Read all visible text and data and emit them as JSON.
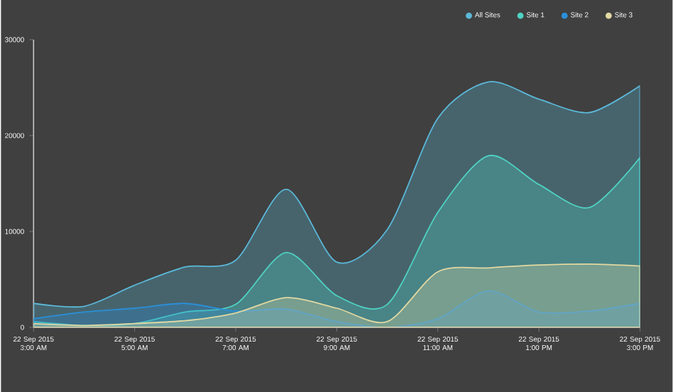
{
  "chart_data": {
    "type": "area",
    "categories": [
      "22 Sep 2015 3:00 AM",
      null,
      "22 Sep 2015 5:00 AM",
      null,
      "22 Sep 2015 7:00 AM",
      null,
      "22 Sep 2015 9:00 AM",
      null,
      "22 Sep 2015 11:00 AM",
      null,
      "22 Sep 2015 1:00 PM",
      null,
      "22 Sep 2015 3:00 PM"
    ],
    "series": [
      {
        "name": "All Sites",
        "color": "#5bb8d8",
        "values": [
          2500,
          2200,
          4400,
          6300,
          7000,
          14400,
          6800,
          10200,
          21800,
          25600,
          23800,
          22400,
          25200
        ]
      },
      {
        "name": "Site 1",
        "color": "#4fd2c2",
        "values": [
          600,
          200,
          400,
          1600,
          2400,
          7800,
          3300,
          2400,
          12000,
          17900,
          14900,
          12500,
          17700
        ]
      },
      {
        "name": "Site 2",
        "color": "#2b8fd8",
        "values": [
          900,
          1600,
          2000,
          2500,
          1700,
          1900,
          600,
          0,
          900,
          3800,
          1600,
          1700,
          2500
        ]
      },
      {
        "name": "Site 3",
        "color": "#e2d9a2",
        "values": [
          400,
          200,
          400,
          700,
          1500,
          3100,
          2000,
          600,
          5800,
          6200,
          6500,
          6600,
          6400
        ]
      }
    ],
    "ylim": [
      0,
      30000
    ],
    "yticks": [
      0,
      10000,
      20000,
      30000
    ],
    "legend": "top right",
    "grid": false
  }
}
